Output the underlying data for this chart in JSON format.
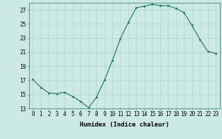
{
  "x": [
    0,
    1,
    2,
    3,
    4,
    5,
    6,
    7,
    8,
    9,
    10,
    11,
    12,
    13,
    14,
    15,
    16,
    17,
    18,
    19,
    20,
    21,
    22,
    23
  ],
  "y": [
    17.1,
    16.0,
    15.2,
    15.1,
    15.3,
    14.7,
    14.0,
    13.1,
    14.6,
    17.0,
    19.8,
    22.9,
    25.2,
    27.3,
    27.5,
    27.8,
    27.6,
    27.6,
    27.2,
    26.6,
    24.8,
    22.8,
    21.1,
    20.8
  ],
  "xlabel": "Humidex (Indice chaleur)",
  "ylim": [
    13,
    28
  ],
  "yticks": [
    13,
    15,
    17,
    19,
    21,
    23,
    25,
    27
  ],
  "xticks": [
    0,
    1,
    2,
    3,
    4,
    5,
    6,
    7,
    8,
    9,
    10,
    11,
    12,
    13,
    14,
    15,
    16,
    17,
    18,
    19,
    20,
    21,
    22,
    23
  ],
  "line_color": "#2d7d6e",
  "marker_color": "#2d7d6e",
  "bg_color": "#cce9e5",
  "grid_color": "#b8d8d4",
  "xlabel_fontsize": 6.5,
  "tick_fontsize": 5.5
}
